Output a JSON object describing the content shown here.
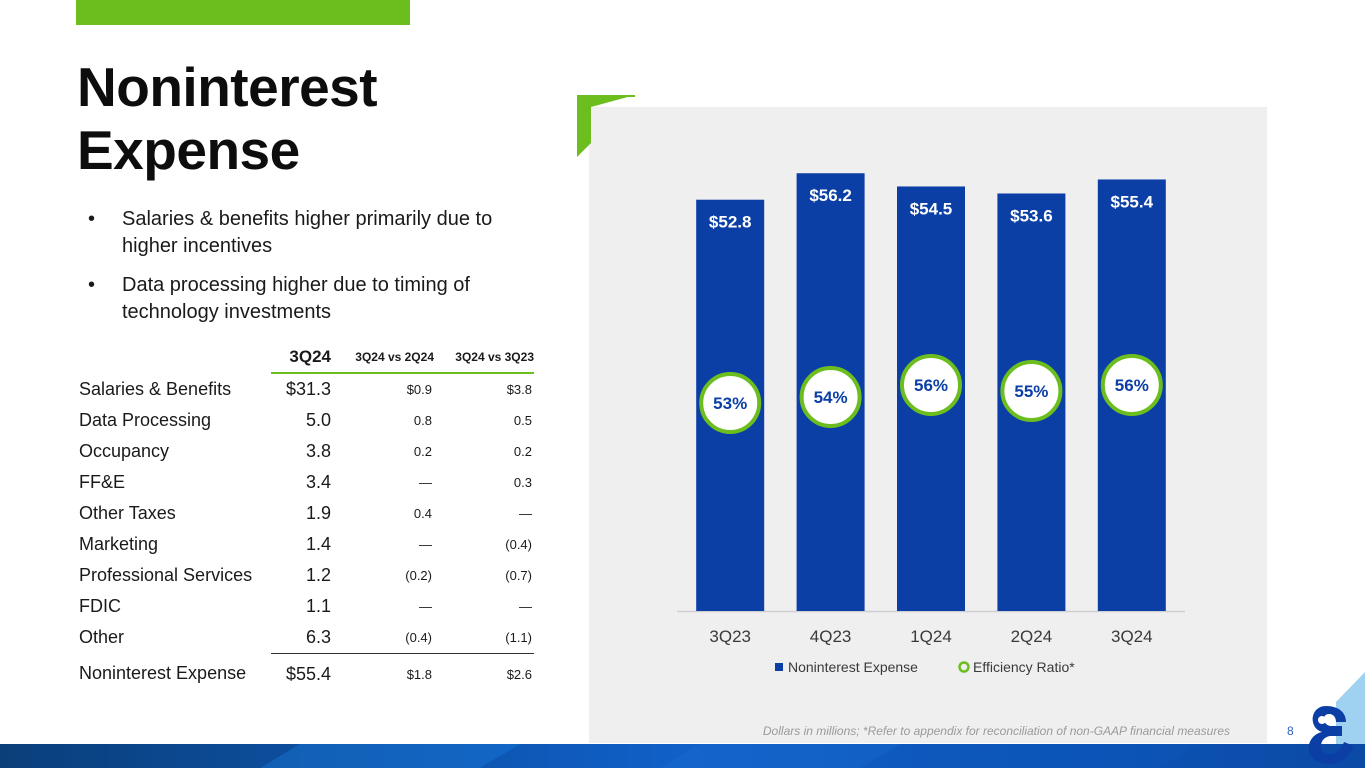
{
  "title_line1": "Noninterest",
  "title_line2": "Expense",
  "bullets": [
    "Salaries & benefits higher primarily due to higher incentives",
    "Data processing higher due to timing of technology investments"
  ],
  "table": {
    "headers": [
      "3Q24",
      "3Q24 vs 2Q24",
      "3Q24 vs 3Q23"
    ],
    "rows": [
      {
        "label": "Salaries & Benefits",
        "value": "$31.3",
        "vs_prior_q": "$0.9",
        "vs_prior_y": "$3.8"
      },
      {
        "label": "Data Processing",
        "value": "5.0",
        "vs_prior_q": "0.8",
        "vs_prior_y": "0.5"
      },
      {
        "label": "Occupancy",
        "value": "3.8",
        "vs_prior_q": "0.2",
        "vs_prior_y": "0.2"
      },
      {
        "label": "FF&E",
        "value": "3.4",
        "vs_prior_q": "—",
        "vs_prior_y": "0.3"
      },
      {
        "label": "Other Taxes",
        "value": "1.9",
        "vs_prior_q": "0.4",
        "vs_prior_y": "—"
      },
      {
        "label": "Marketing",
        "value": "1.4",
        "vs_prior_q": "—",
        "vs_prior_y": "(0.4)"
      },
      {
        "label": "Professional Services",
        "value": "1.2",
        "vs_prior_q": "(0.2)",
        "vs_prior_y": "(0.7)"
      },
      {
        "label": "FDIC",
        "value": "1.1",
        "vs_prior_q": "—",
        "vs_prior_y": "—"
      },
      {
        "label": "Other",
        "value": "6.3",
        "vs_prior_q": "(0.4)",
        "vs_prior_y": "(1.1)"
      }
    ],
    "total": {
      "label": "Noninterest Expense",
      "value": "$55.4",
      "vs_prior_q": "$1.8",
      "vs_prior_y": "$2.6"
    }
  },
  "chart_data": {
    "type": "bar",
    "categories": [
      "3Q23",
      "4Q23",
      "1Q24",
      "2Q24",
      "3Q24"
    ],
    "series": [
      {
        "name": "Noninterest Expense",
        "values": [
          52.8,
          56.2,
          54.5,
          53.6,
          55.4
        ],
        "labels": [
          "$52.8",
          "$56.2",
          "$54.5",
          "$53.6",
          "$55.4"
        ]
      },
      {
        "name": "Efficiency Ratio*",
        "values": [
          53,
          54,
          56,
          55,
          56
        ],
        "labels": [
          "53%",
          "54%",
          "56%",
          "55%",
          "56%"
        ]
      }
    ],
    "ylim": [
      0,
      57
    ],
    "grid": false,
    "legend": "bottom"
  },
  "colors": {
    "bar": "#0b3fa6",
    "accent_green": "#6cbe1e",
    "bubble_text": "#0b3fa6"
  },
  "footnote": "Dollars in millions; *Refer to appendix for reconciliation of non-GAAP financial measures",
  "page_number": "8"
}
